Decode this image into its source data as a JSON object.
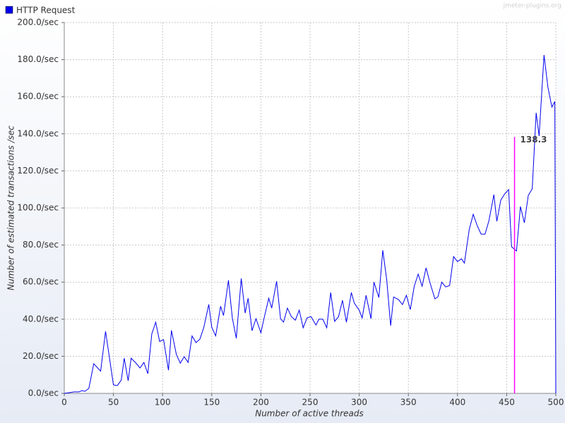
{
  "chart_data": {
    "type": "line",
    "legend_label": "HTTP Request",
    "watermark": "jmeter-plugins.org",
    "xlabel": "Number of active threads",
    "ylabel": "Number of estimated transactions /sec",
    "xlim": [
      0,
      500
    ],
    "ylim": [
      0,
      200
    ],
    "xticks": [
      0,
      50,
      100,
      150,
      200,
      250,
      300,
      350,
      400,
      450,
      500
    ],
    "yticks": [
      {
        "value": 0,
        "label": "0.0/sec"
      },
      {
        "value": 20,
        "label": "20.0/sec"
      },
      {
        "value": 40,
        "label": "40.0/sec"
      },
      {
        "value": 60,
        "label": "60.0/sec"
      },
      {
        "value": 80,
        "label": "80.0/sec"
      },
      {
        "value": 100,
        "label": "100.0/sec"
      },
      {
        "value": 120,
        "label": "120.0/sec"
      },
      {
        "value": 140,
        "label": "140.0/sec"
      },
      {
        "value": 160,
        "label": "160.0/sec"
      },
      {
        "value": 180,
        "label": "180.0/sec"
      },
      {
        "value": 200,
        "label": "200.0/sec"
      }
    ],
    "grid": true,
    "x": [
      0,
      5,
      10,
      15,
      18,
      21,
      25,
      30,
      37,
      42,
      50,
      54,
      58,
      61,
      65,
      68,
      73,
      77,
      81,
      85,
      89,
      93,
      97,
      101,
      106,
      109,
      114,
      118,
      122,
      126,
      130,
      134,
      138,
      142,
      147,
      150,
      154,
      159,
      162,
      167,
      171,
      175,
      180,
      184,
      187,
      191,
      195,
      200,
      203,
      208,
      211,
      216,
      220,
      223,
      227,
      231,
      235,
      239,
      243,
      247,
      251,
      256,
      259,
      263,
      267,
      271,
      275,
      279,
      283,
      287,
      292,
      295,
      300,
      303,
      307,
      312,
      315,
      320,
      324,
      328,
      332,
      335,
      340,
      344,
      348,
      352,
      356,
      360,
      364,
      368,
      372,
      377,
      380,
      384,
      388,
      392,
      396,
      400,
      404,
      407,
      412,
      416,
      420,
      424,
      428,
      432,
      437,
      440,
      444,
      448,
      452,
      455,
      460,
      464,
      468,
      472,
      476,
      480,
      483,
      488,
      492,
      496,
      499,
      500
    ],
    "series": [
      {
        "name": "HTTP Request",
        "color": "#0000ee",
        "values": [
          0,
          0.4,
          0.8,
          0.8,
          1.5,
          1.1,
          2.7,
          16,
          12,
          33.5,
          4.6,
          4.2,
          7.2,
          19,
          6.8,
          19,
          16.3,
          13.7,
          16.7,
          10.6,
          32,
          38.4,
          28,
          29,
          12.5,
          34,
          21,
          16.3,
          19.8,
          16.7,
          31,
          27.4,
          29.3,
          35.7,
          48,
          35.7,
          31,
          47,
          42,
          61,
          40.5,
          29.7,
          62,
          43.3,
          51.3,
          33.8,
          40.3,
          32.7,
          40,
          51.3,
          46,
          60.5,
          40.3,
          38.4,
          46,
          41.4,
          39.5,
          44.9,
          35.4,
          40.7,
          41.4,
          36.9,
          40,
          40,
          35.4,
          54.4,
          38.8,
          41.4,
          50.2,
          38.4,
          54.4,
          48.7,
          44.9,
          40.7,
          52.9,
          40.3,
          60,
          51.7,
          77.2,
          61.2,
          36.5,
          52,
          50.6,
          47.9,
          52.9,
          45.2,
          57.8,
          64.3,
          57.8,
          67.7,
          59.7,
          51,
          52,
          60,
          57.4,
          58.2,
          73.8,
          71.1,
          72.6,
          70.3,
          88.6,
          96.6,
          90.5,
          85.9,
          85.9,
          93.2,
          107.2,
          92.8,
          104.2,
          107.6,
          109.9,
          79.1,
          76.8,
          100.8,
          92,
          106.8,
          110.3,
          151.3,
          138.8,
          182.5,
          165,
          154.4,
          157.4,
          0
        ]
      }
    ],
    "marker": {
      "x": 458,
      "value": 138.3,
      "color": "#ff00ff"
    }
  }
}
